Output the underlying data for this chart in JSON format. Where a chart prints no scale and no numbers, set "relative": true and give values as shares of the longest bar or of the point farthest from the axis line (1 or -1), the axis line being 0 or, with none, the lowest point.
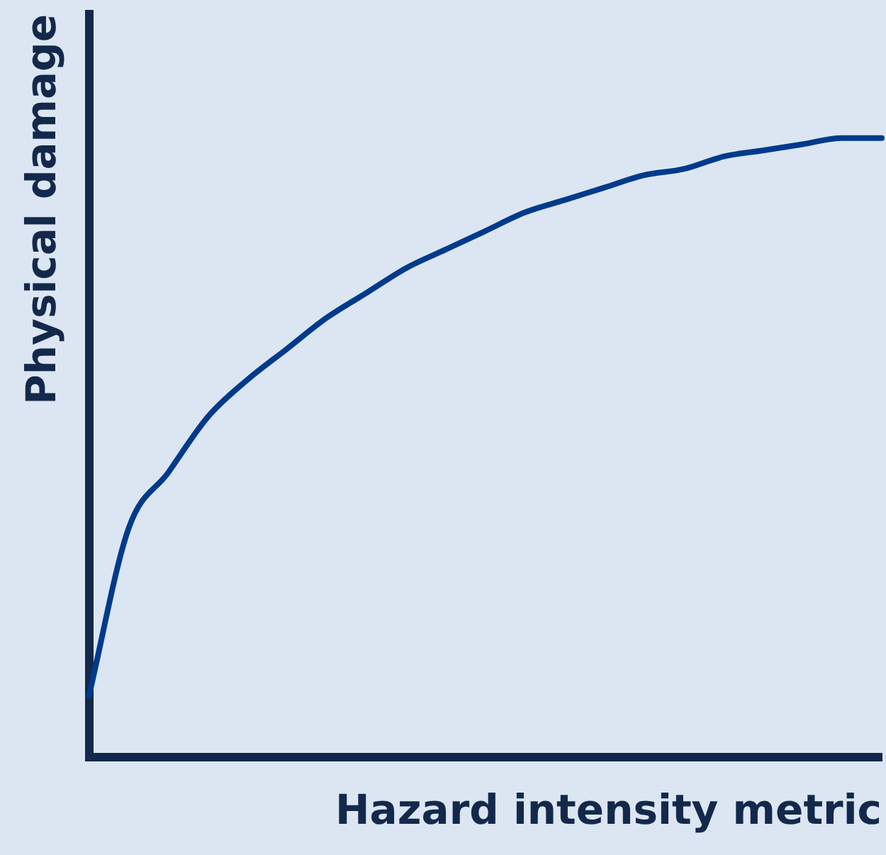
{
  "chart_data": {
    "type": "line",
    "relative": true,
    "xlabel": "Hazard intensity metric",
    "ylabel": "Physical damage",
    "categories": [
      null,
      null,
      null,
      null,
      null,
      null,
      null,
      null,
      null,
      null,
      null,
      null,
      null,
      null,
      null,
      null,
      null,
      null,
      null,
      null,
      null
    ],
    "series": [
      {
        "color": "#003a8c",
        "values": [
          0.1,
          0.37,
          0.46,
          0.55,
          0.61,
          0.66,
          0.71,
          0.75,
          0.79,
          0.82,
          0.85,
          0.88,
          0.9,
          0.92,
          0.94,
          0.95,
          0.97,
          0.98,
          0.99,
          1.0,
          1.0
        ]
      }
    ],
    "marker": "none",
    "line_style": "solid",
    "grid": false,
    "legend": false
  }
}
